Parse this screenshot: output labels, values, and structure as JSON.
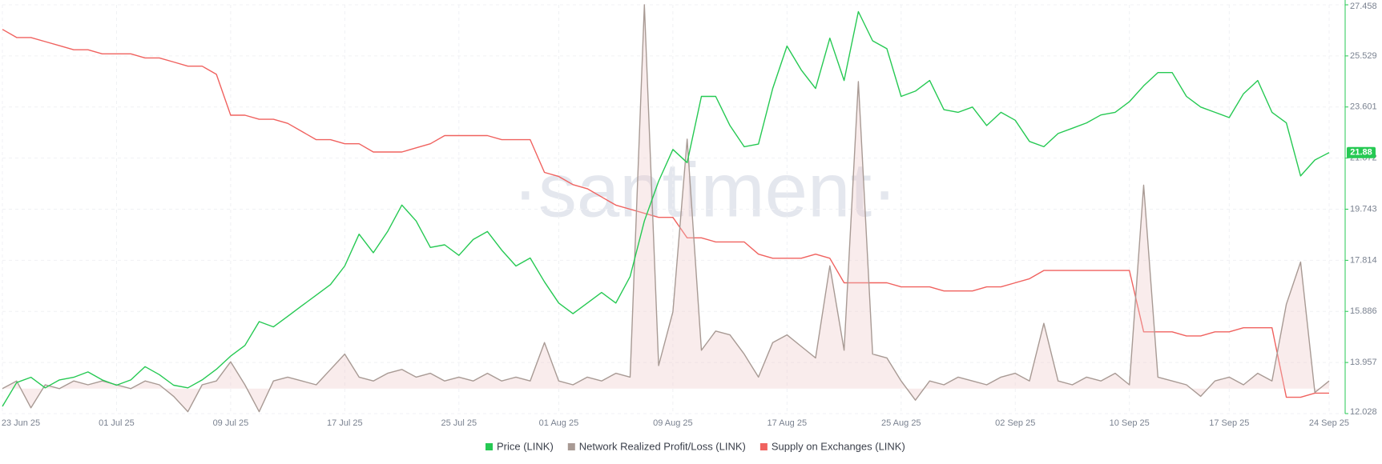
{
  "chart_data": {
    "type": "line",
    "watermark": "·santiment·",
    "xlim": [
      0,
      93.9
    ],
    "xticks": [
      {
        "value": 0,
        "label": "23 Jun 25"
      },
      {
        "value": 8,
        "label": "01 Jul 25"
      },
      {
        "value": 16,
        "label": "09 Jul 25"
      },
      {
        "value": 24,
        "label": "17 Jul 25"
      },
      {
        "value": 32,
        "label": "25 Jul 25"
      },
      {
        "value": 39,
        "label": "01 Aug 25"
      },
      {
        "value": 47,
        "label": "09 Aug 25"
      },
      {
        "value": 55,
        "label": "17 Aug 25"
      },
      {
        "value": 63,
        "label": "25 Aug 25"
      },
      {
        "value": 71,
        "label": "02 Sep 25"
      },
      {
        "value": 79,
        "label": "10 Sep 25"
      },
      {
        "value": 86,
        "label": "17 Sep 25"
      },
      {
        "value": 93,
        "label": "24 Sep 25"
      }
    ],
    "ylim": [
      12.028,
      27.458
    ],
    "yticks": [
      12.028,
      13.957,
      15.886,
      17.814,
      19.743,
      21.672,
      23.601,
      25.529,
      27.458
    ],
    "y2lim": [
      0,
      100
    ],
    "y3lim": [
      -6.5,
      100
    ],
    "grid": true,
    "x": [
      0,
      1,
      2,
      3,
      4,
      5,
      6,
      7,
      8,
      9,
      10,
      11,
      12,
      13,
      14,
      15,
      16,
      17,
      18,
      19,
      20,
      21,
      22,
      23,
      24,
      25,
      26,
      27,
      28,
      29,
      30,
      31,
      32,
      33,
      34,
      35,
      36,
      37,
      38,
      39,
      40,
      41,
      42,
      43,
      44,
      45,
      46,
      47,
      48,
      49,
      50,
      51,
      52,
      53,
      54,
      55,
      56,
      57,
      58,
      59,
      60,
      61,
      62,
      63,
      64,
      65,
      66,
      67,
      68,
      69,
      70,
      71,
      72,
      73,
      74,
      75,
      76,
      77,
      78,
      79,
      80,
      81,
      82,
      83,
      84,
      85,
      86,
      87,
      88,
      89,
      90,
      91,
      92,
      93
    ],
    "series": [
      {
        "name": "Price (LINK)",
        "color": "#26c953",
        "axis": "y",
        "values": [
          12.3,
          13.2,
          13.4,
          13.0,
          13.3,
          13.4,
          13.6,
          13.3,
          13.1,
          13.3,
          13.8,
          13.5,
          13.1,
          13.0,
          13.3,
          13.7,
          14.2,
          14.6,
          15.5,
          15.3,
          15.7,
          16.1,
          16.5,
          16.9,
          17.6,
          18.8,
          18.1,
          18.9,
          19.9,
          19.3,
          18.3,
          18.4,
          18.0,
          18.6,
          18.9,
          18.2,
          17.6,
          17.9,
          17.0,
          16.2,
          15.8,
          16.2,
          16.6,
          16.2,
          17.2,
          19.3,
          20.8,
          22.0,
          21.5,
          24.0,
          24.0,
          22.9,
          22.1,
          22.2,
          24.3,
          25.9,
          25.0,
          24.3,
          26.2,
          24.6,
          27.2,
          26.1,
          25.8,
          24.0,
          24.2,
          24.6,
          23.5,
          23.4,
          23.6,
          22.9,
          23.4,
          23.1,
          22.3,
          22.1,
          22.6,
          22.8,
          23.0,
          23.3,
          23.4,
          23.8,
          24.4,
          24.9,
          24.9,
          24.0,
          23.6,
          23.4,
          23.2,
          24.1,
          24.6,
          23.4,
          23.0,
          21.0,
          21.6,
          21.88
        ]
      },
      {
        "name": "Network Realized Profit/Loss (LINK)",
        "color": "#a89a94",
        "axis": "y3",
        "area": true,
        "values": [
          0,
          2,
          -5,
          1,
          0,
          2,
          1,
          2,
          1,
          0,
          2,
          1,
          -2,
          -6,
          1,
          2,
          7,
          1,
          -6,
          2,
          3,
          2,
          1,
          5,
          9,
          3,
          2,
          4,
          5,
          3,
          4,
          2,
          3,
          2,
          4,
          2,
          3,
          2,
          12,
          2,
          1,
          3,
          2,
          4,
          3,
          100,
          6,
          20,
          65,
          10,
          15,
          14,
          9,
          3,
          12,
          14,
          11,
          8,
          32,
          10,
          80,
          9,
          8,
          2,
          -3,
          2,
          1,
          3,
          2,
          1,
          3,
          4,
          2,
          17,
          2,
          1,
          3,
          2,
          4,
          1,
          53,
          3,
          2,
          1,
          -2,
          2,
          3,
          1,
          4,
          2,
          22,
          33,
          -1,
          2
        ]
      },
      {
        "name": "Supply on Exchanges (LINK)",
        "color": "#f0625f",
        "axis": "y2",
        "values": [
          94,
          92,
          92,
          91,
          90,
          89,
          89,
          88,
          88,
          88,
          87,
          87,
          86,
          85,
          85,
          83,
          73,
          73,
          72,
          72,
          71,
          69,
          67,
          67,
          66,
          66,
          64,
          64,
          64,
          65,
          66,
          68,
          68,
          68,
          68,
          67,
          67,
          67,
          59,
          58,
          56,
          55,
          53,
          51,
          50,
          49,
          48,
          48,
          43,
          43,
          42,
          42,
          42,
          39,
          38,
          38,
          38,
          39,
          38,
          32,
          32,
          32,
          32,
          31,
          31,
          31,
          30,
          30,
          30,
          31,
          31,
          32,
          33,
          35,
          35,
          35,
          35,
          35,
          35,
          35,
          20,
          20,
          20,
          19,
          19,
          20,
          20,
          21,
          21,
          21,
          4,
          4,
          5,
          5
        ]
      }
    ]
  }
}
